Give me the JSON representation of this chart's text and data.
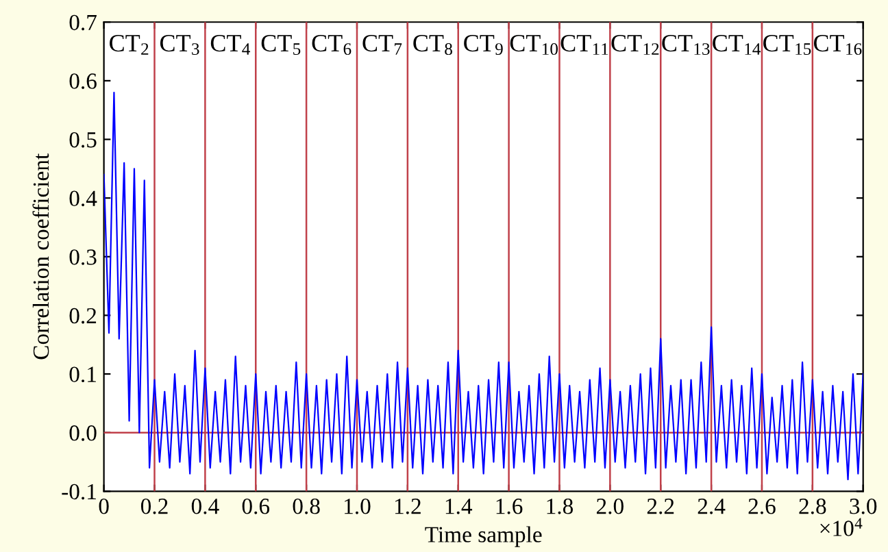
{
  "chart_data": {
    "type": "line",
    "xlabel": "Time sample",
    "ylabel": "Correlation coefficient",
    "xlim": [
      0,
      3.0
    ],
    "ylim": [
      -0.1,
      0.7
    ],
    "xticks": [
      0,
      0.2,
      0.4,
      0.6,
      0.8,
      {
        "value": 1,
        "label": "1.0"
      },
      1.2,
      1.4,
      1.6,
      1.8,
      {
        "value": 2,
        "label": "2.0"
      },
      2.2,
      2.4,
      2.6,
      2.8,
      {
        "value": 3,
        "label": "3.0"
      }
    ],
    "yticks": [
      -0.1,
      {
        "value": 0,
        "label": "0.0"
      },
      0.1,
      0.2,
      0.3,
      0.4,
      0.5,
      0.6,
      0.7
    ],
    "grid": false,
    "x": [
      0,
      0.02,
      0.04,
      0.06,
      0.08,
      0.1,
      0.12,
      0.14,
      0.16,
      0.18,
      0.2,
      0.22,
      0.24,
      0.26,
      0.28,
      0.3,
      0.32,
      0.34,
      0.36,
      0.38,
      0.4,
      0.42,
      0.44,
      0.46,
      0.48,
      0.5,
      0.52,
      0.54,
      0.56,
      0.58,
      0.6,
      0.62,
      0.64,
      0.66,
      0.68,
      0.7,
      0.72,
      0.74,
      0.76,
      0.78,
      0.8,
      0.82,
      0.84,
      0.86,
      0.88,
      0.9,
      0.92,
      0.94,
      0.96,
      0.98,
      1.0,
      1.02,
      1.04,
      1.06,
      1.08,
      1.1,
      1.12,
      1.14,
      1.16,
      1.18,
      1.2,
      1.22,
      1.24,
      1.26,
      1.28,
      1.3,
      1.32,
      1.34,
      1.36,
      1.38,
      1.4,
      1.42,
      1.44,
      1.46,
      1.48,
      1.5,
      1.52,
      1.54,
      1.56,
      1.58,
      1.6,
      1.62,
      1.64,
      1.66,
      1.68,
      1.7,
      1.72,
      1.74,
      1.76,
      1.78,
      1.8,
      1.82,
      1.84,
      1.86,
      1.88,
      1.9,
      1.92,
      1.94,
      1.96,
      1.98,
      2.0,
      2.02,
      2.04,
      2.06,
      2.08,
      2.1,
      2.12,
      2.14,
      2.16,
      2.18,
      2.2,
      2.22,
      2.24,
      2.26,
      2.28,
      2.3,
      2.32,
      2.34,
      2.36,
      2.38,
      2.4,
      2.42,
      2.44,
      2.46,
      2.48,
      2.5,
      2.52,
      2.54,
      2.56,
      2.58,
      2.6,
      2.62,
      2.64,
      2.66,
      2.68,
      2.7,
      2.72,
      2.74,
      2.76,
      2.78,
      2.8,
      2.82,
      2.84,
      2.86,
      2.88,
      2.9,
      2.92,
      2.94,
      2.96,
      2.98,
      3.0
    ],
    "series": [
      {
        "color": "#0000ff",
        "values": [
          0.44,
          0.17,
          0.58,
          0.16,
          0.46,
          0.02,
          0.45,
          0.0,
          0.43,
          -0.06,
          0.09,
          -0.05,
          0.07,
          -0.06,
          0.1,
          -0.05,
          0.08,
          -0.07,
          0.14,
          -0.05,
          0.11,
          -0.06,
          0.07,
          -0.05,
          0.09,
          -0.07,
          0.13,
          -0.05,
          0.08,
          -0.06,
          0.1,
          -0.07,
          0.07,
          -0.05,
          0.08,
          -0.06,
          0.07,
          -0.05,
          0.12,
          -0.06,
          0.1,
          -0.06,
          0.08,
          -0.07,
          0.09,
          -0.05,
          0.1,
          -0.07,
          0.13,
          -0.06,
          0.09,
          -0.05,
          0.07,
          -0.06,
          0.08,
          -0.05,
          0.1,
          -0.06,
          0.12,
          -0.05,
          0.11,
          -0.06,
          0.08,
          -0.07,
          0.09,
          -0.05,
          0.08,
          -0.06,
          0.12,
          -0.07,
          0.14,
          -0.05,
          0.07,
          -0.06,
          0.08,
          -0.07,
          0.09,
          -0.05,
          0.12,
          -0.06,
          0.12,
          -0.06,
          0.07,
          -0.05,
          0.08,
          -0.07,
          0.1,
          -0.06,
          0.13,
          -0.05,
          0.1,
          -0.06,
          0.08,
          -0.05,
          0.07,
          -0.06,
          0.09,
          -0.05,
          0.11,
          -0.06,
          0.09,
          -0.05,
          0.07,
          -0.06,
          0.08,
          -0.05,
          0.1,
          -0.07,
          0.11,
          -0.06,
          0.16,
          -0.06,
          0.08,
          -0.05,
          0.09,
          -0.07,
          0.09,
          -0.06,
          0.12,
          -0.05,
          0.18,
          -0.05,
          0.08,
          -0.06,
          0.09,
          -0.05,
          0.08,
          -0.07,
          0.11,
          -0.06,
          0.1,
          -0.07,
          0.06,
          -0.05,
          0.08,
          -0.06,
          0.09,
          -0.07,
          0.12,
          -0.05,
          0.09,
          -0.06,
          0.07,
          -0.07,
          0.08,
          -0.05,
          0.07,
          -0.08,
          0.1,
          -0.07,
          0.1
        ]
      }
    ],
    "ref_lines": [
      {
        "axis": "y",
        "value": 0,
        "color": "#c0404a"
      },
      {
        "axis": "x",
        "value": 0.2,
        "color": "#c0404a"
      },
      {
        "axis": "x",
        "value": 0.4,
        "color": "#c0404a"
      },
      {
        "axis": "x",
        "value": 0.6,
        "color": "#c0404a"
      },
      {
        "axis": "x",
        "value": 0.8,
        "color": "#c0404a"
      },
      {
        "axis": "x",
        "value": 1.0,
        "color": "#c0404a"
      },
      {
        "axis": "x",
        "value": 1.2,
        "color": "#c0404a"
      },
      {
        "axis": "x",
        "value": 1.4,
        "color": "#c0404a"
      },
      {
        "axis": "x",
        "value": 1.6,
        "color": "#c0404a"
      },
      {
        "axis": "x",
        "value": 1.8,
        "color": "#c0404a"
      },
      {
        "axis": "x",
        "value": 2.0,
        "color": "#c0404a"
      },
      {
        "axis": "x",
        "value": 2.2,
        "color": "#c0404a"
      },
      {
        "axis": "x",
        "value": 2.4,
        "color": "#c0404a"
      },
      {
        "axis": "x",
        "value": 2.6,
        "color": "#c0404a"
      },
      {
        "axis": "x",
        "value": 2.8,
        "color": "#c0404a"
      }
    ],
    "annotations": [
      "CT$_{2}$",
      "CT$_{3}$",
      "CT$_{4}$",
      "CT$_{5}$",
      "CT$_{6}$",
      "CT$_{7}$",
      "CT$_{8}$",
      "CT$_{9}$",
      "CT$_{10}$",
      "CT$_{11}$",
      "CT$_{12}$",
      "CT$_{13}$",
      "CT$_{14}$",
      "CT$_{15}$",
      "CT$_{16}$",
      "×10$^{4}$"
    ]
  }
}
